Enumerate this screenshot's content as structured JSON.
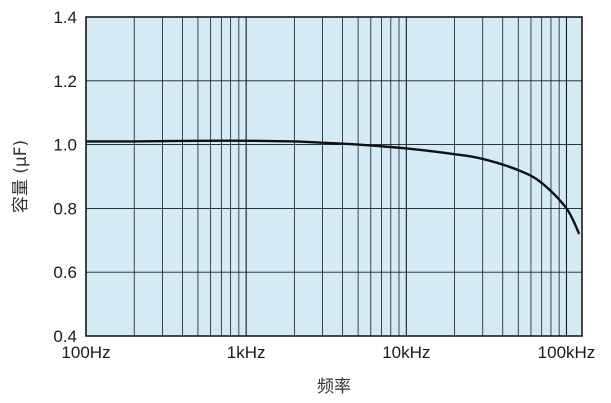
{
  "chart_data": {
    "type": "line",
    "title": "",
    "xlabel": "频率",
    "ylabel": "容量 (μF)",
    "x_scale": "log",
    "xlim_hz": [
      100,
      125000
    ],
    "ylim": [
      0.4,
      1.4
    ],
    "x_ticks": [
      {
        "value_hz": 100,
        "label": "100Hz"
      },
      {
        "value_hz": 1000,
        "label": "1kHz"
      },
      {
        "value_hz": 10000,
        "label": "10kHz"
      },
      {
        "value_hz": 100000,
        "label": "100kHz"
      }
    ],
    "y_ticks": [
      {
        "value": 0.4,
        "label": "0.4"
      },
      {
        "value": 0.6,
        "label": "0.6"
      },
      {
        "value": 0.8,
        "label": "0.8"
      },
      {
        "value": 1.0,
        "label": "1.0"
      },
      {
        "value": 1.2,
        "label": "1.2"
      },
      {
        "value": 1.4,
        "label": "1.4"
      }
    ],
    "grid": true,
    "series": [
      {
        "x_hz": [
          100,
          200,
          500,
          1000,
          2000,
          3000,
          5000,
          10000,
          20000,
          30000,
          50000,
          70000,
          100000,
          120000
        ],
        "y": [
          1.01,
          1.01,
          1.012,
          1.012,
          1.01,
          1.006,
          1.0,
          0.988,
          0.97,
          0.955,
          0.92,
          0.88,
          0.8,
          0.72
        ]
      }
    ],
    "colors": {
      "plot_background": "#d4ebf6",
      "grid": "#1a1a1a",
      "line": "#111111"
    }
  }
}
